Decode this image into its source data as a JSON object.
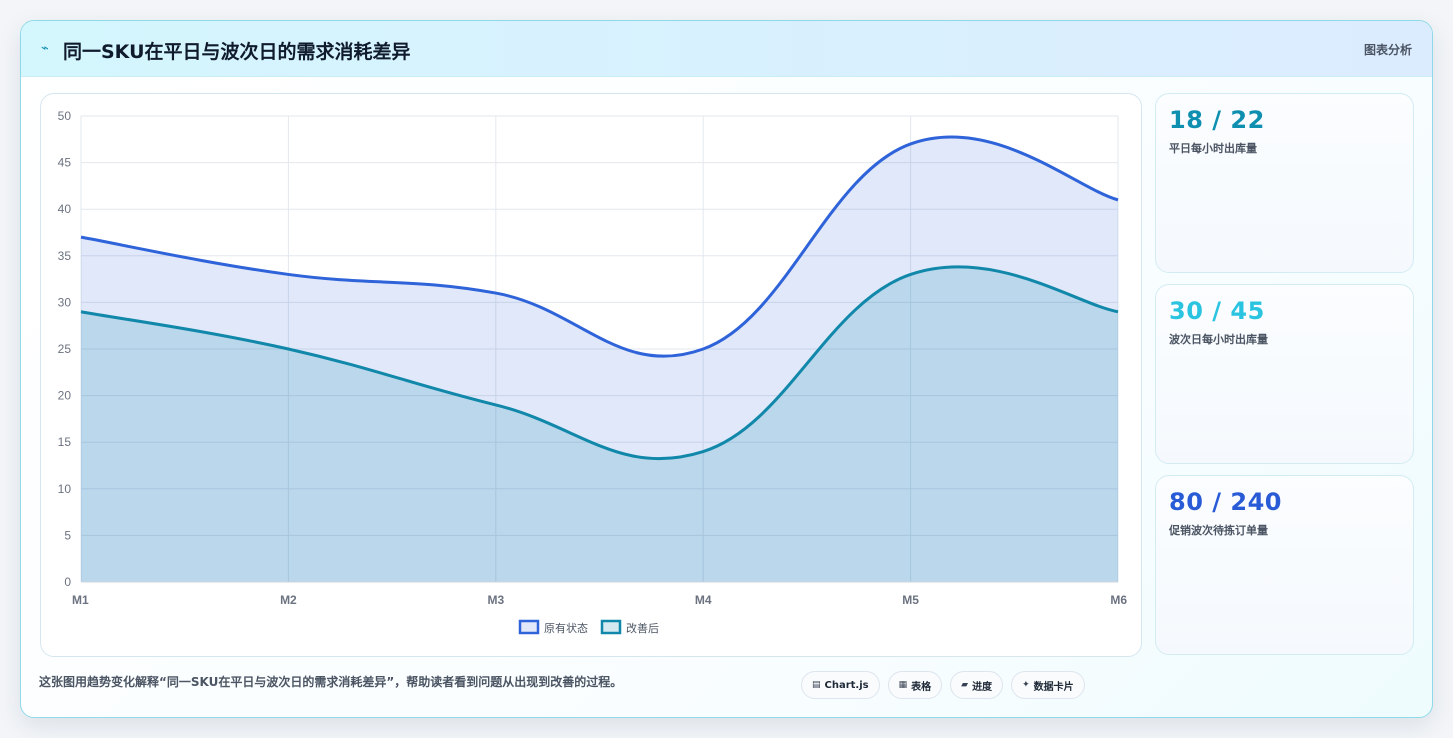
{
  "header": {
    "title": "同一SKU在平日与波次日的需求消耗差异",
    "tag": "图表分析"
  },
  "stats": [
    {
      "value": "18 / 22",
      "label": "平日每小时出库量",
      "color": "#0e8fb0"
    },
    {
      "value": "30 / 45",
      "label": "波次日每小时出库量",
      "color": "#2bc4e0"
    },
    {
      "value": "80 / 240",
      "label": "促销波次待拣订单量",
      "color": "#2a5bd7"
    }
  ],
  "footer": {
    "text": "这张图用趋势变化解释“同一SKU在平日与波次日的需求消耗差异”，帮助读者看到问题从出现到改善的过程。",
    "chips": [
      {
        "icon": "chart-icon",
        "label": "Chart.js"
      },
      {
        "icon": "table-icon",
        "label": "表格"
      },
      {
        "icon": "progress-icon",
        "label": "进度"
      },
      {
        "icon": "card-icon",
        "label": "数据卡片"
      }
    ]
  },
  "chart_data": {
    "type": "area",
    "categories": [
      "M1",
      "M2",
      "M3",
      "M4",
      "M5",
      "M6"
    ],
    "series": [
      {
        "name": "原有状态",
        "values": [
          37,
          33,
          31,
          25,
          47,
          41
        ],
        "color": "#2e63d9",
        "fill": "rgba(46,99,217,0.15)"
      },
      {
        "name": "改善后",
        "values": [
          29,
          25,
          19,
          14,
          33,
          29
        ],
        "color": "#1188aa",
        "fill": "rgba(17,136,170,0.18)"
      }
    ],
    "ylim": [
      0,
      50
    ],
    "yticks": [
      "0",
      "5",
      "10",
      "15",
      "20",
      "25",
      "30",
      "35",
      "40",
      "45",
      "50"
    ],
    "grid": true,
    "legend": "bottom"
  }
}
